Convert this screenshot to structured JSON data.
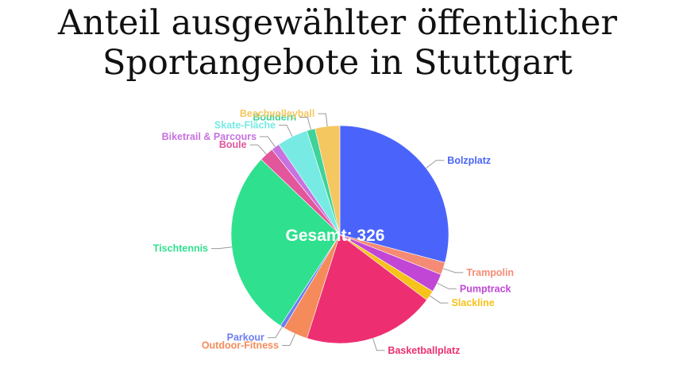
{
  "title_lines": [
    "Anteil ausgewählter öffentlicher",
    "Sportangebote in Stuttgart"
  ],
  "chart_data": {
    "type": "pie",
    "title": "Anteil ausgewählter öffentlicher Sportangebote in Stuttgart",
    "center_label": "Gesamt: 326",
    "total": 326,
    "slices": [
      {
        "label": "Bolzplatz",
        "value": 95,
        "color": "#4a64fb"
      },
      {
        "label": "Trampolin",
        "value": 6,
        "color": "#f58b74"
      },
      {
        "label": "Pumptrack",
        "value": 9,
        "color": "#c146d5"
      },
      {
        "label": "Slackline",
        "value": 5,
        "color": "#f7c21a"
      },
      {
        "label": "Basketballplatz",
        "value": 64,
        "color": "#ed2f72"
      },
      {
        "label": "Outdoor-Fitness",
        "value": 12,
        "color": "#f58b5b"
      },
      {
        "label": "Parkour",
        "value": 2,
        "color": "#6c7ef0"
      },
      {
        "label": "Tischtennis",
        "value": 91,
        "color": "#2fe08e"
      },
      {
        "label": "Boule",
        "value": 7,
        "color": "#e2569b"
      },
      {
        "label": "Biketrail & Parcours",
        "value": 4,
        "color": "#c772e0"
      },
      {
        "label": "Skate-Fläche",
        "value": 15,
        "color": "#78eae4"
      },
      {
        "label": "Bouldern",
        "value": 4,
        "color": "#3fd39a"
      },
      {
        "label": "Beachvolleyball",
        "value": 12,
        "color": "#f5c760"
      }
    ]
  }
}
